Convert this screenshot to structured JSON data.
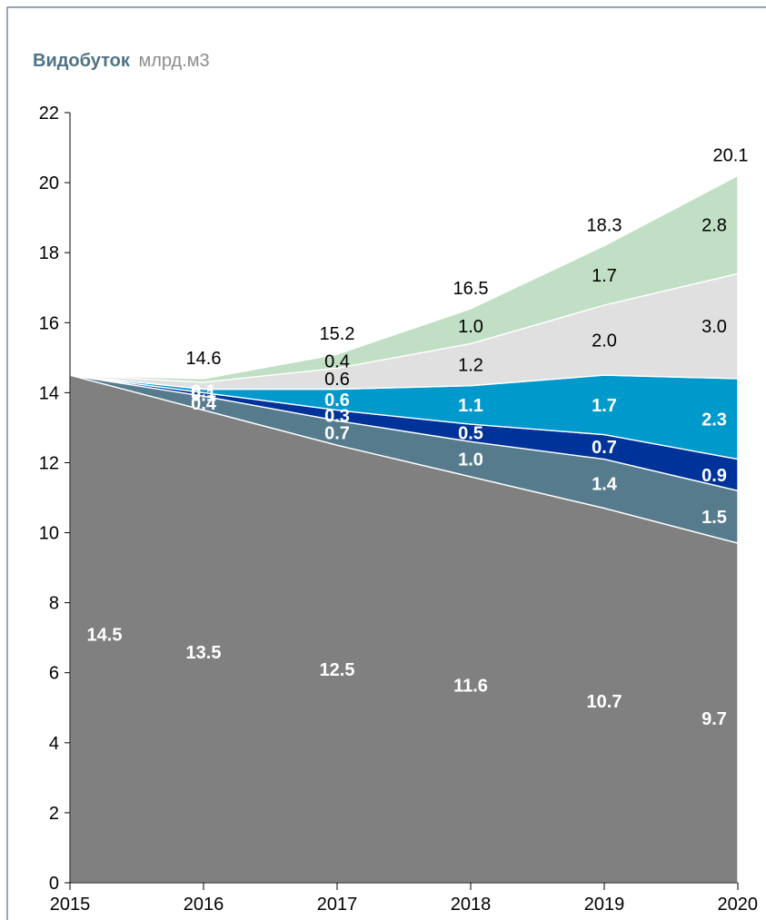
{
  "title": "Видобуток",
  "subtitle": "млрд.м3",
  "chart_data": {
    "type": "area",
    "stacked": true,
    "x": [
      2015,
      2016,
      2017,
      2018,
      2019,
      2020
    ],
    "ylim": [
      0,
      22
    ],
    "yticks": [
      0,
      2,
      4,
      6,
      8,
      10,
      12,
      14,
      16,
      18,
      20,
      22
    ],
    "xticks": [
      "2015",
      "2016",
      "2017",
      "2018",
      "2019",
      "2020"
    ],
    "totals": [
      null,
      "14.6",
      "15.2",
      "16.5",
      "18.3",
      "20.1"
    ],
    "series": [
      {
        "color": "#808080",
        "text_color": "#ffffff",
        "bold": true,
        "values": [
          14.5,
          13.5,
          12.5,
          11.6,
          10.7,
          9.7
        ],
        "labels": [
          "14.5",
          "13.5",
          "12.5",
          "11.6",
          "10.7",
          "9.7"
        ]
      },
      {
        "color": "#557b8d",
        "text_color": "#ffffff",
        "bold": true,
        "values": [
          0,
          0.4,
          0.7,
          1.0,
          1.4,
          1.5
        ],
        "labels": [
          null,
          "0.4",
          "0.7",
          "1.0",
          "1.4",
          "1.5"
        ]
      },
      {
        "color": "#003399",
        "text_color": "#ffffff",
        "bold": true,
        "values": [
          0,
          0.1,
          0.3,
          0.5,
          0.7,
          0.9
        ],
        "labels": [
          null,
          "0.1",
          "0.3",
          "0.5",
          "0.7",
          "0.9"
        ]
      },
      {
        "color": "#0099cc",
        "text_color": "#ffffff",
        "bold": true,
        "values": [
          0,
          0.1,
          0.6,
          1.1,
          1.7,
          2.3
        ],
        "labels": [
          null,
          "0.1",
          "0.6",
          "1.1",
          "1.7",
          "2.3"
        ]
      },
      {
        "color": "#e0e0e0",
        "text_color": "#000000",
        "bold": false,
        "values": [
          0,
          0.2,
          0.6,
          1.2,
          2.0,
          3.0
        ],
        "labels": [
          null,
          null,
          "0.6",
          "1.2",
          "2.0",
          "3.0"
        ]
      },
      {
        "color": "#c0dfc4",
        "text_color": "#000000",
        "bold": false,
        "values": [
          0,
          0.1,
          0.4,
          1.0,
          1.7,
          2.8
        ],
        "labels": [
          null,
          null,
          "0.4",
          "1.0",
          "1.7",
          "2.8"
        ]
      }
    ],
    "grid": false,
    "legend": "none"
  }
}
